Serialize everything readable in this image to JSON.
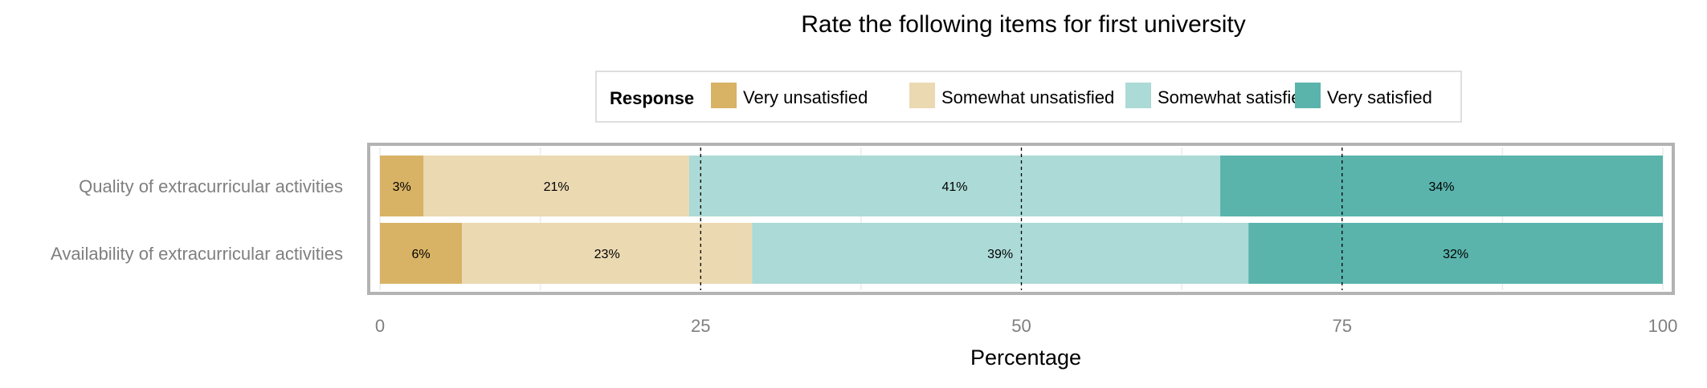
{
  "chart_data": {
    "type": "bar",
    "orientation": "horizontal",
    "stacked": true,
    "title": "Rate the following items for first university",
    "xlabel": "Percentage",
    "ylabel": "",
    "xlim": [
      0,
      100
    ],
    "x_ticks": [
      "0",
      "25",
      "50",
      "75",
      "100"
    ],
    "categories": [
      "Quality of extracurricular activities",
      "Availability of extracurricular activities"
    ],
    "legend": {
      "title": "Response",
      "placement": "top",
      "entries": [
        "Very unsatisfied",
        "Somewhat unsatisfied",
        "Somewhat satisfied",
        "Very satisfied"
      ]
    },
    "series": [
      {
        "name": "Very unsatisfied",
        "color": "#d8b365",
        "values": [
          3.4,
          6.4
        ],
        "labels": [
          "3%",
          "6%"
        ]
      },
      {
        "name": "Somewhat unsatisfied",
        "color": "#ebd9b2",
        "values": [
          20.7,
          22.6
        ],
        "labels": [
          "21%",
          "23%"
        ]
      },
      {
        "name": "Somewhat satisfied",
        "color": "#acdad6",
        "values": [
          41.4,
          38.7
        ],
        "labels": [
          "41%",
          "39%"
        ]
      },
      {
        "name": "Very satisfied",
        "color": "#5ab4ac",
        "values": [
          34.5,
          32.3
        ],
        "labels": [
          "34%",
          "32%"
        ]
      }
    ],
    "reference_lines": [
      25,
      50,
      75
    ],
    "grid": true
  }
}
